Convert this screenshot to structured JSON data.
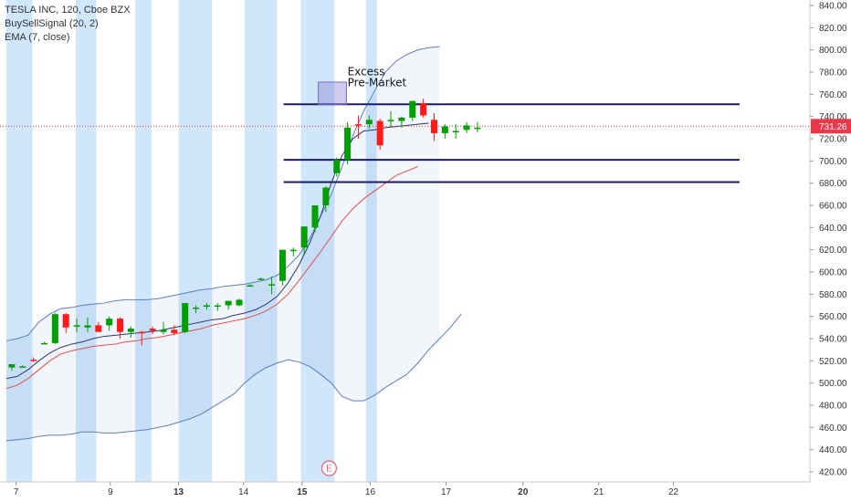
{
  "legend": {
    "line1": "TESLA INC, 120, Cboe BZX",
    "line2": "BuySellSignal (20, 2)",
    "line3": "EMA (7, close)"
  },
  "chart_data": {
    "type": "candlestick",
    "ylim": [
      412,
      848
    ],
    "y_ticks": [
      420,
      440,
      460,
      480,
      500,
      520,
      540,
      560,
      580,
      600,
      620,
      640,
      660,
      680,
      700,
      720,
      740,
      760,
      780,
      800,
      820,
      840
    ],
    "x_ticks": [
      {
        "label": "7",
        "bold": false,
        "idx": 0.9
      },
      {
        "label": "9",
        "bold": false,
        "idx": 9.6
      },
      {
        "label": "13",
        "bold": true,
        "idx": 15.9
      },
      {
        "label": "14",
        "bold": false,
        "idx": 21.9
      },
      {
        "label": "15",
        "bold": true,
        "idx": 27.3
      },
      {
        "label": "16",
        "bold": false,
        "idx": 33.6
      },
      {
        "label": "17",
        "bold": false,
        "idx": 40.6
      },
      {
        "label": "20",
        "bold": true,
        "idx": 47.7
      },
      {
        "label": "21",
        "bold": false,
        "idx": 54.7
      },
      {
        "label": "22",
        "bold": false,
        "idx": 61.6
      }
    ],
    "last_price": "731.26",
    "last_price_value": 731.26,
    "colors": {
      "up": "#00a000",
      "down": "#ff1a1a",
      "band": "#5b7fbf",
      "ema": "#e05050",
      "level": "#1a1a6e",
      "signal": "#cfe6fb"
    },
    "candles": [
      [
        514,
        517,
        511,
        517
      ],
      [
        515,
        516,
        514,
        515
      ],
      [
        521,
        523,
        519,
        520
      ],
      [
        536,
        537,
        535,
        536
      ],
      [
        536,
        563,
        535,
        562
      ],
      [
        562,
        563,
        545,
        550
      ],
      [
        551,
        558,
        546,
        552
      ],
      [
        550,
        559,
        546,
        552
      ],
      [
        552,
        555,
        547,
        546
      ],
      [
        552,
        560,
        547,
        558
      ],
      [
        558,
        559,
        540,
        546
      ],
      [
        546,
        551,
        541,
        549
      ],
      [
        546,
        547,
        534,
        545
      ],
      [
        549,
        551,
        544,
        547
      ],
      [
        546,
        555,
        544,
        548
      ],
      [
        548,
        552,
        543,
        545
      ],
      [
        546,
        572,
        545,
        572
      ],
      [
        567,
        570,
        563,
        568
      ],
      [
        569,
        572,
        566,
        570
      ],
      [
        570,
        572,
        565,
        570
      ],
      [
        570,
        573,
        566,
        574
      ],
      [
        570,
        576,
        569,
        575
      ],
      [
        588,
        589,
        587,
        588
      ],
      [
        594,
        595,
        593,
        594
      ],
      [
        589,
        596,
        580,
        589
      ],
      [
        592,
        620,
        588,
        620
      ],
      [
        620,
        622,
        614,
        620
      ],
      [
        622,
        640,
        616,
        641
      ],
      [
        640,
        660,
        636,
        660
      ],
      [
        660,
        677,
        654,
        676
      ],
      [
        689,
        703,
        686,
        701
      ],
      [
        701,
        735,
        697,
        730
      ],
      [
        733,
        741,
        720,
        732
      ],
      [
        733,
        741,
        729,
        737
      ],
      [
        736,
        738,
        710,
        714
      ],
      [
        737,
        745,
        730,
        737
      ],
      [
        736,
        740,
        730,
        739
      ],
      [
        739,
        753,
        736,
        754
      ],
      [
        752,
        756,
        739,
        741
      ],
      [
        737,
        743,
        718,
        725
      ],
      [
        725,
        733,
        720,
        731
      ],
      [
        727,
        733,
        720,
        727
      ],
      [
        728,
        735,
        725,
        732
      ],
      [
        730,
        735,
        726,
        730
      ]
    ],
    "upper_band": [
      538,
      540,
      543,
      555,
      562,
      567,
      568,
      570,
      571,
      572,
      574,
      575,
      575,
      575,
      576,
      578,
      580,
      582,
      584,
      585,
      587,
      588,
      589,
      591,
      593,
      597,
      605,
      615,
      630,
      650,
      670,
      695,
      723,
      745,
      763,
      780,
      790,
      796,
      800,
      802,
      803
    ],
    "lower_band": [
      448,
      449,
      450,
      452,
      453,
      453,
      454,
      456,
      456,
      455,
      455,
      456,
      457,
      458,
      460,
      462,
      465,
      468,
      472,
      478,
      484,
      490,
      500,
      508,
      514,
      518,
      521,
      519,
      515,
      508,
      500,
      488,
      484,
      484,
      489,
      496,
      502,
      508,
      518,
      530,
      540,
      550,
      562
    ],
    "mid_band": [
      504,
      506,
      512,
      520,
      527,
      532,
      535,
      537,
      540,
      542,
      543,
      544,
      545,
      546,
      547,
      549,
      551,
      553,
      555,
      557,
      558,
      561,
      563,
      566,
      571,
      578,
      590,
      606,
      626,
      650,
      680,
      705,
      720,
      727,
      728,
      730,
      731,
      732,
      733,
      734
    ],
    "ema": [
      495,
      498,
      504,
      512,
      520,
      526,
      529,
      531,
      533,
      534,
      535,
      537,
      538,
      540,
      541,
      543,
      545,
      547,
      549,
      552,
      554,
      556,
      558,
      561,
      565,
      571,
      580,
      592,
      605,
      618,
      632,
      646,
      657,
      666,
      673,
      680,
      687,
      691,
      695
    ],
    "levels": [
      751,
      701,
      681
    ],
    "level_range": [
      25.6,
      67.7
    ],
    "signal_ranges": [
      [
        0,
        2.4
      ],
      [
        6.4,
        8.3
      ],
      [
        11.9,
        13.4
      ],
      [
        15.9,
        19.0
      ],
      [
        22.0,
        25.0
      ],
      [
        27.2,
        30.3
      ],
      [
        33.2,
        34.2
      ]
    ],
    "box": {
      "x0": 28.8,
      "x1": 31.4,
      "y0": 751,
      "y1": 771
    },
    "annotation": {
      "line1": "Excess",
      "line2": "Pre-Market",
      "x": 31.5,
      "y": 777
    },
    "event_marker": {
      "label": "E",
      "x": 29.8
    }
  }
}
